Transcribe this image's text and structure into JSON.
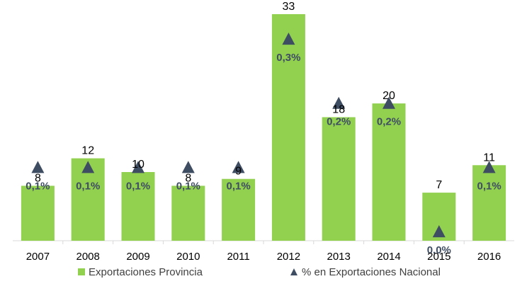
{
  "chart_data": {
    "type": "bar",
    "categories": [
      "2007",
      "2008",
      "2009",
      "2010",
      "2011",
      "2012",
      "2013",
      "2014",
      "2015",
      "2016"
    ],
    "series": [
      {
        "name": "Exportaciones Provincia",
        "type": "bar",
        "values": [
          8,
          12,
          10,
          8,
          9,
          33,
          18,
          20,
          7,
          11
        ],
        "labels": [
          "8",
          "12",
          "10",
          "8",
          "9",
          "33",
          "18",
          "20",
          "7",
          "11"
        ],
        "color": "#92D050"
      },
      {
        "name": "% en Exportaciones Nacional",
        "type": "scatter",
        "marker": "triangle",
        "values": [
          0.1,
          0.1,
          0.1,
          0.1,
          0.1,
          0.3,
          0.2,
          0.2,
          0.0,
          0.1
        ],
        "labels": [
          "0,1%",
          "0,1%",
          "0,1%",
          "0,1%",
          "0,1%",
          "0,3%",
          "0,2%",
          "0,2%",
          "0,0%",
          "0,1%"
        ],
        "color": "#3F4D63"
      }
    ],
    "ylim": [
      0,
      33
    ],
    "grid": false,
    "legend_position": "bottom"
  }
}
